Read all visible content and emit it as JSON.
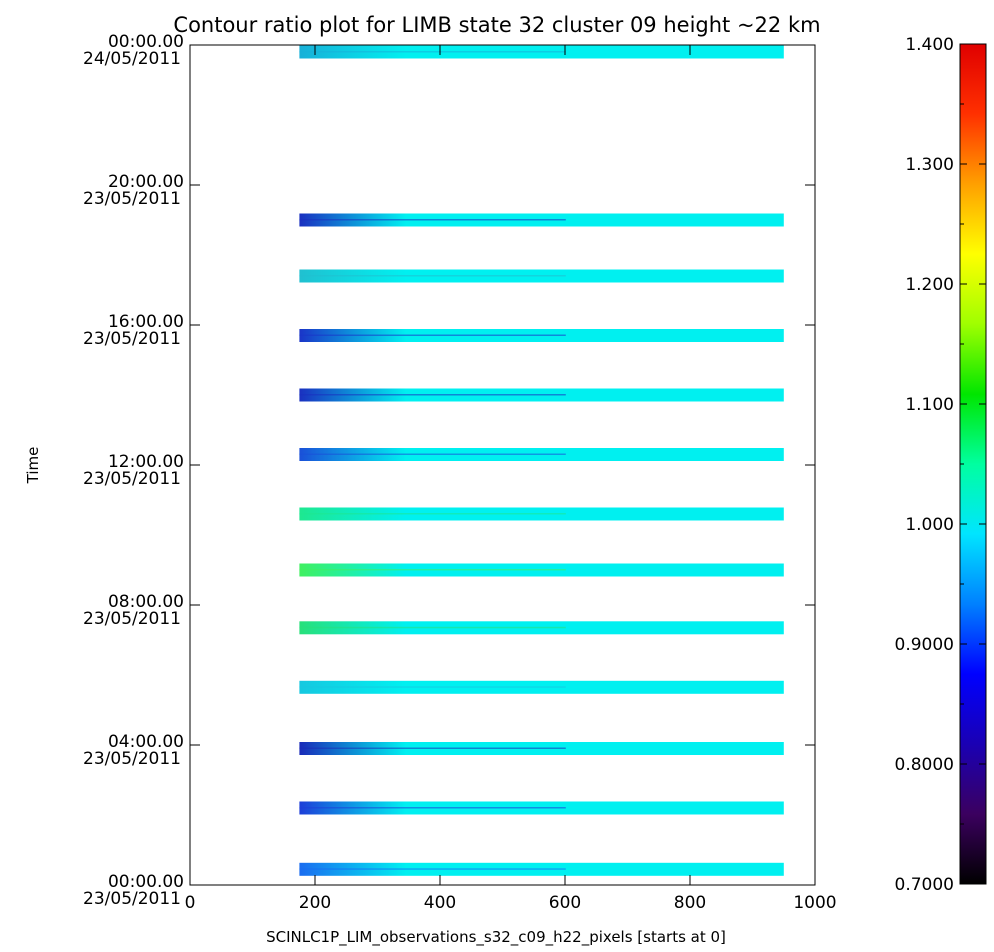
{
  "chart_data": {
    "type": "heatmap",
    "title": "Contour ratio plot for LIMB state 32 cluster 09 height ~22 km",
    "xlabel": "SCINLC1P_LIM_observations_s32_c09_h22_pixels [starts at 0]",
    "ylabel": "Time",
    "xlim": [
      0,
      1000
    ],
    "x_ticks": [
      "0",
      "200",
      "400",
      "600",
      "800",
      "1000"
    ],
    "y_range_hours": [
      0,
      24
    ],
    "y_ticks": [
      {
        "hour": 0,
        "time": "00:00.00",
        "date": "23/05/2011"
      },
      {
        "hour": 4,
        "time": "04:00.00",
        "date": "23/05/2011"
      },
      {
        "hour": 8,
        "time": "08:00.00",
        "date": "23/05/2011"
      },
      {
        "hour": 12,
        "time": "12:00.00",
        "date": "23/05/2011"
      },
      {
        "hour": 16,
        "time": "16:00.00",
        "date": "23/05/2011"
      },
      {
        "hour": 20,
        "time": "20:00.00",
        "date": "23/05/2011"
      },
      {
        "hour": 24,
        "time": "00:00.00",
        "date": "24/05/2011"
      }
    ],
    "colorbar": {
      "range": [
        0.7,
        1.4
      ],
      "tick_labels": [
        "0.7000",
        "0.8000",
        "0.9000",
        "1.000",
        "1.100",
        "1.200",
        "1.300",
        "1.400"
      ],
      "colormap": [
        "#000000",
        "#3b005f",
        "#1a00b4",
        "#0000ff",
        "#0080ff",
        "#00e5ff",
        "#00ffa0",
        "#00e600",
        "#a0ff00",
        "#ffff00",
        "#ffa000",
        "#ff3000",
        "#e00000"
      ]
    },
    "pixel_range": [
      175,
      950
    ],
    "base_color": "#00f0f0",
    "orbits": [
      {
        "hour_center": 0.45,
        "left_color": "#1a6cf0"
      },
      {
        "hour_center": 2.2,
        "left_color": "#1d3ed8"
      },
      {
        "hour_center": 3.9,
        "left_color": "#1a2bb8"
      },
      {
        "hour_center": 5.65,
        "left_color": "#15c8e0"
      },
      {
        "hour_center": 7.35,
        "left_color": "#28e07a"
      },
      {
        "hour_center": 9.0,
        "left_color": "#40f060"
      },
      {
        "hour_center": 10.6,
        "left_color": "#1ee890"
      },
      {
        "hour_center": 12.3,
        "left_color": "#1a50d8"
      },
      {
        "hour_center": 14.0,
        "left_color": "#1a30c0"
      },
      {
        "hour_center": 15.7,
        "left_color": "#1a35c8"
      },
      {
        "hour_center": 17.4,
        "left_color": "#20c0d0"
      },
      {
        "hour_center": 19.0,
        "left_color": "#1a30c0"
      },
      {
        "hour_center": 23.8,
        "left_color": "#18b0d8"
      }
    ]
  }
}
